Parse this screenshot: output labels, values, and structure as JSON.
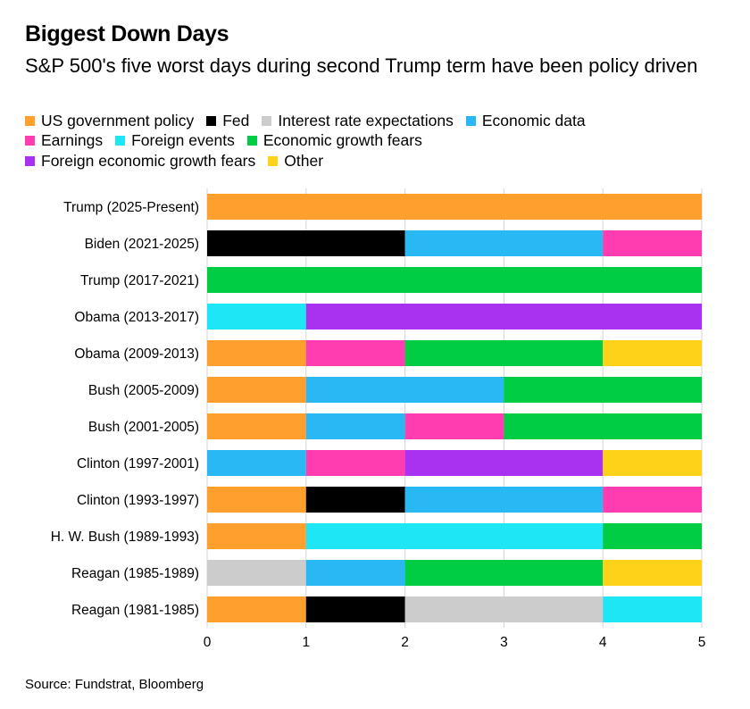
{
  "title": "Biggest Down Days",
  "subtitle": "S&P 500's five worst days during second Trump term have been policy driven",
  "source": "Source: Fundstrat, Bloomberg",
  "colors": {
    "US government policy": "#ff9f2e",
    "Fed": "#000000",
    "Interest rate expectations": "#cccccc",
    "Economic data": "#2ab8f5",
    "Earnings": "#ff3db0",
    "Foreign events": "#1ee6f5",
    "Economic growth fears": "#00cc44",
    "Foreign economic growth fears": "#a832f0",
    "Other": "#ffd21a"
  },
  "legend_rows": [
    [
      "US government policy",
      "Fed",
      "Interest rate expectations",
      "Economic data"
    ],
    [
      "Earnings",
      "Foreign events",
      "Economic growth fears"
    ],
    [
      "Foreign economic growth fears",
      "Other"
    ]
  ],
  "chart_data": {
    "type": "bar",
    "orientation": "horizontal",
    "stacked": true,
    "xlim": [
      0,
      5
    ],
    "xticks": [
      "0",
      "1",
      "2",
      "3",
      "4",
      "5"
    ],
    "grid": "vertical",
    "legend_position": "top",
    "categories": [
      "Trump (2025-Present)",
      "Biden (2021-2025)",
      "Trump (2017-2021)",
      "Obama (2013-2017)",
      "Obama (2009-2013)",
      "Bush (2005-2009)",
      "Bush (2001-2005)",
      "Clinton (1997-2001)",
      "Clinton (1993-1997)",
      "H. W. Bush (1989-1993)",
      "Reagan (1985-1989)",
      "Reagan (1981-1985)"
    ],
    "series": [
      {
        "name": "US government policy",
        "values": [
          5,
          0,
          0,
          0,
          1,
          1,
          1,
          0,
          1,
          1,
          0,
          1
        ]
      },
      {
        "name": "Fed",
        "values": [
          0,
          2,
          0,
          0,
          0,
          0,
          0,
          0,
          1,
          0,
          0,
          1
        ]
      },
      {
        "name": "Interest rate expectations",
        "values": [
          0,
          0,
          0,
          0,
          0,
          0,
          0,
          0,
          0,
          0,
          1,
          2
        ]
      },
      {
        "name": "Economic data",
        "values": [
          0,
          2,
          0,
          0,
          0,
          2,
          1,
          1,
          2,
          0,
          1,
          0
        ]
      },
      {
        "name": "Earnings",
        "values": [
          0,
          1,
          0,
          0,
          1,
          0,
          1,
          1,
          1,
          0,
          0,
          0
        ]
      },
      {
        "name": "Foreign events",
        "values": [
          0,
          0,
          0,
          1,
          0,
          0,
          0,
          0,
          0,
          3,
          0,
          1
        ]
      },
      {
        "name": "Economic growth fears",
        "values": [
          0,
          0,
          5,
          0,
          2,
          2,
          2,
          0,
          0,
          1,
          2,
          0
        ]
      },
      {
        "name": "Foreign economic growth fears",
        "values": [
          0,
          0,
          0,
          4,
          0,
          0,
          0,
          2,
          0,
          0,
          0,
          0
        ]
      },
      {
        "name": "Other",
        "values": [
          0,
          0,
          0,
          0,
          1,
          0,
          0,
          1,
          0,
          0,
          1,
          0
        ]
      }
    ]
  }
}
